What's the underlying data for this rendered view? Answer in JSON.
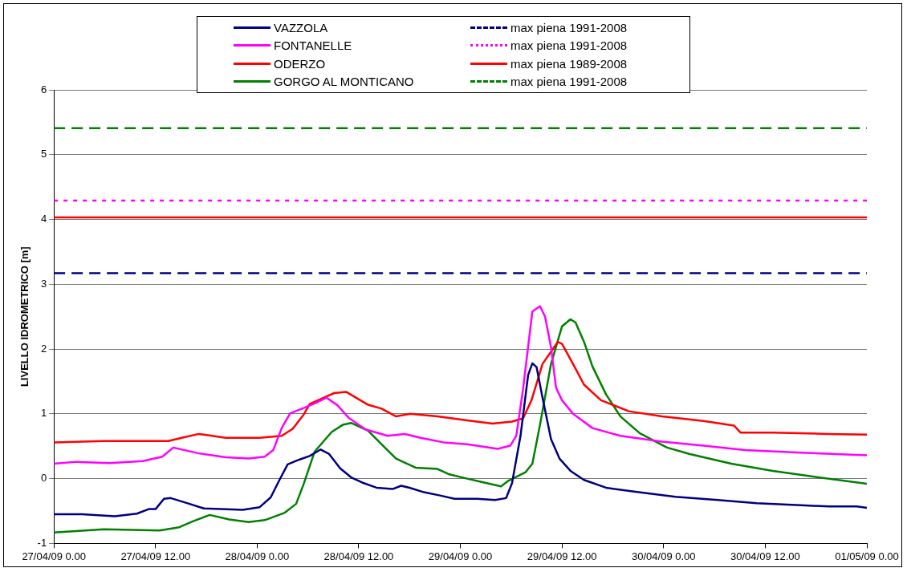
{
  "chart_data": {
    "type": "line",
    "ylabel": "LIVELLO IDROMETRICO [m]",
    "xlim": [
      "--04-27T00:00",
      "--05-01T00:00"
    ],
    "xticks": [
      {
        "value": "--04-27T00:00",
        "label": "27/04/09 0.00"
      },
      {
        "value": "--04-27T12:00",
        "label": "27/04/09 12.00"
      },
      {
        "value": "--04-28T00:00",
        "label": "28/04/09 0.00"
      },
      {
        "value": "--04-28T12:00",
        "label": "28/04/09 12.00"
      },
      {
        "value": "--04-29T00:00",
        "label": "29/04/09 0.00"
      },
      {
        "value": "--04-29T12:00",
        "label": "29/04/09 12.00"
      },
      {
        "value": "--04-30T00:00",
        "label": "30/04/09 0.00"
      },
      {
        "value": "--04-30T12:00",
        "label": "30/04/09 12.00"
      },
      {
        "value": "--05-01T00:00",
        "label": "01/05/09 0.00"
      }
    ],
    "ylim": [
      -1,
      6
    ],
    "yticks": [
      -1,
      0,
      1,
      2,
      3,
      4,
      5,
      6
    ],
    "grid": "y",
    "legend": "top",
    "marker": "none",
    "series": [
      {
        "name": "VAZZOLA",
        "color": "#000080",
        "line_style": "solid",
        "x": [
          "--04-27T00:00",
          "--04-27T03:18",
          "--04-27T07:12",
          "--04-27T09:48",
          "--04-27T11:12",
          "--04-27T12:00",
          "--04-27T13:00",
          "--04-27T13:48",
          "--04-27T15:48",
          "--04-27T17:42",
          "--04-27T19:42",
          "--04-27T22:18",
          "--04-28T00:18",
          "--04-28T01:36",
          "--04-28T02:36",
          "--04-28T03:36",
          "--04-28T04:54",
          "--04-28T06:12",
          "--04-28T07:30",
          "--04-28T08:30",
          "--04-28T09:48",
          "--04-28T11:06",
          "--04-28T12:24",
          "--04-28T14:06",
          "--04-28T16:00",
          "--04-28T17:00",
          "--04-28T18:00",
          "--04-28T19:42",
          "--04-28T21:36",
          "--04-28T23:18",
          "--04-29T02:00",
          "--04-29T04:06",
          "--04-29T05:24",
          "--04-29T06:06",
          "--04-29T07:06",
          "--04-29T08:00",
          "--04-29T08:30",
          "--04-29T09:00",
          "--04-29T09:42",
          "--04-29T10:42",
          "--04-29T11:42",
          "--04-29T13:00",
          "--04-29T14:36",
          "--04-29T17:12",
          "--04-29T20:30",
          "--04-30T01:24",
          "--04-30T06:24",
          "--04-30T11:00",
          "--04-30T16:12",
          "--04-30T19:30",
          "--04-30T22:48",
          "--05-01T00:00"
        ],
        "values": [
          -0.55,
          -0.55,
          -0.58,
          -0.54,
          -0.47,
          -0.47,
          -0.31,
          -0.3,
          -0.38,
          -0.46,
          -0.47,
          -0.48,
          -0.44,
          -0.29,
          -0.03,
          0.22,
          0.29,
          0.35,
          0.45,
          0.38,
          0.16,
          0.02,
          -0.06,
          -0.14,
          -0.16,
          -0.11,
          -0.14,
          -0.21,
          -0.26,
          -0.31,
          -0.31,
          -0.33,
          -0.3,
          -0.07,
          0.66,
          1.6,
          1.78,
          1.72,
          1.25,
          0.61,
          0.31,
          0.12,
          -0.02,
          -0.14,
          -0.2,
          -0.28,
          -0.33,
          -0.38,
          -0.41,
          -0.43,
          -0.43,
          -0.45
        ]
      },
      {
        "name": "FONTANELLE",
        "color": "#ff00ff",
        "line_style": "solid",
        "x": [
          "--04-27T00:00",
          "--04-27T02:36",
          "--04-27T06:36",
          "--04-27T10:30",
          "--04-27T12:48",
          "--04-27T14:06",
          "--04-27T17:06",
          "--04-27T20:18",
          "--04-27T23:00",
          "--04-28T00:54",
          "--04-28T01:54",
          "--04-28T02:54",
          "--04-28T03:54",
          "--04-28T05:30",
          "--04-28T06:48",
          "--04-28T08:12",
          "--04-28T09:30",
          "--04-28T10:48",
          "--04-28T12:48",
          "--04-28T15:24",
          "--04-28T17:24",
          "--04-28T19:18",
          "--04-28T22:00",
          "--04-29T00:48",
          "--04-29T04:24",
          "--04-29T05:54",
          "--04-29T06:36",
          "--04-29T07:24",
          "--04-29T08:30",
          "--04-29T09:24",
          "--04-29T10:00",
          "--04-29T10:42",
          "--04-29T11:18",
          "--04-29T12:00",
          "--04-29T13:18",
          "--04-29T15:36",
          "--04-29T18:54",
          "--04-29T23:48",
          "--04-30T04:42",
          "--04-30T09:36",
          "--04-30T16:12",
          "--05-01T00:00"
        ],
        "values": [
          0.23,
          0.26,
          0.24,
          0.27,
          0.34,
          0.48,
          0.39,
          0.33,
          0.31,
          0.34,
          0.44,
          0.78,
          1.01,
          1.09,
          1.16,
          1.25,
          1.13,
          0.94,
          0.76,
          0.66,
          0.69,
          0.63,
          0.56,
          0.53,
          0.46,
          0.51,
          0.66,
          1.38,
          2.58,
          2.66,
          2.5,
          2.03,
          1.4,
          1.21,
          1.0,
          0.78,
          0.66,
          0.57,
          0.51,
          0.44,
          0.4,
          0.36
        ]
      },
      {
        "name": "ODERZO",
        "color": "#ff0000",
        "line_style": "solid",
        "x": [
          "--04-27T00:00",
          "--04-27T05:54",
          "--04-27T13:30",
          "--04-27T15:06",
          "--04-27T17:06",
          "--04-27T20:18",
          "--04-28T00:18",
          "--04-28T02:54",
          "--04-28T04:12",
          "--04-28T05:30",
          "--04-28T06:12",
          "--04-28T08:12",
          "--04-28T09:06",
          "--04-28T10:30",
          "--04-28T13:06",
          "--04-28T14:42",
          "--04-28T16:24",
          "--04-28T18:00",
          "--04-28T21:18",
          "--04-29T00:48",
          "--04-29T03:48",
          "--04-29T06:06",
          "--04-29T07:24",
          "--04-29T08:24",
          "--04-29T09:42",
          "--04-29T11:30",
          "--04-29T12:00",
          "--04-29T13:18",
          "--04-29T14:36",
          "--04-29T16:36",
          "--04-29T19:54",
          "--04-29T23:48",
          "--04-30T04:42",
          "--04-30T08:18",
          "--04-30T09:06",
          "--04-30T12:54",
          "--04-30T19:30",
          "--05-01T00:00"
        ],
        "values": [
          0.56,
          0.58,
          0.58,
          0.63,
          0.69,
          0.63,
          0.63,
          0.66,
          0.77,
          0.99,
          1.15,
          1.27,
          1.32,
          1.34,
          1.14,
          1.08,
          0.96,
          1.0,
          0.96,
          0.9,
          0.85,
          0.88,
          0.93,
          1.21,
          1.77,
          2.11,
          2.08,
          1.77,
          1.45,
          1.21,
          1.04,
          0.96,
          0.89,
          0.82,
          0.71,
          0.71,
          0.69,
          0.68
        ]
      },
      {
        "name": "GORGO AL MONTICANO",
        "color": "#008000",
        "line_style": "solid",
        "x": [
          "--04-27T00:00",
          "--04-27T02:36",
          "--04-27T05:54",
          "--04-27T09:12",
          "--04-27T12:30",
          "--04-27T14:48",
          "--04-27T16:24",
          "--04-27T18:24",
          "--04-27T20:42",
          "--04-27T23:00",
          "--04-28T00:54",
          "--04-28T03:12",
          "--04-28T04:36",
          "--04-28T05:30",
          "--04-28T06:48",
          "--04-28T08:48",
          "--04-28T10:06",
          "--04-28T11:06",
          "--04-28T13:06",
          "--04-28T14:42",
          "--04-28T16:24",
          "--04-28T18:42",
          "--04-28T21:18",
          "--04-28T22:36",
          "--04-29T00:48",
          "--04-29T02:30",
          "--04-29T04:48",
          "--04-29T05:42",
          "--04-29T07:42",
          "--04-29T08:30",
          "--04-29T09:24",
          "--04-29T10:42",
          "--04-29T12:00",
          "--04-29T13:00",
          "--04-29T13:36",
          "--04-29T14:36",
          "--04-29T15:36",
          "--04-29T17:12",
          "--04-29T18:54",
          "--04-29T21:12",
          "--04-30T00:24",
          "--04-30T03:06",
          "--04-30T08:00",
          "--04-30T12:54",
          "--04-30T17:48",
          "--05-01T00:00"
        ],
        "values": [
          -0.83,
          -0.81,
          -0.78,
          -0.79,
          -0.8,
          -0.75,
          -0.66,
          -0.56,
          -0.63,
          -0.67,
          -0.64,
          -0.53,
          -0.39,
          -0.08,
          0.42,
          0.72,
          0.83,
          0.86,
          0.74,
          0.53,
          0.31,
          0.17,
          0.15,
          0.07,
          0.0,
          -0.05,
          -0.12,
          -0.03,
          0.1,
          0.23,
          0.83,
          1.77,
          2.35,
          2.46,
          2.41,
          2.11,
          1.73,
          1.3,
          0.96,
          0.7,
          0.48,
          0.38,
          0.23,
          0.12,
          0.03,
          -0.08
        ]
      },
      {
        "name": "max piena 1991-2008",
        "color": "#000080",
        "line_style": "dashed",
        "x": [
          "--04-27T00:00",
          "--05-01T00:00"
        ],
        "values": [
          3.17,
          3.17
        ]
      },
      {
        "name": "max piena 1991-2008",
        "color": "#ff00ff",
        "line_style": "dotted",
        "x": [
          "--04-27T00:00",
          "--05-01T00:00"
        ],
        "values": [
          4.29,
          4.29
        ]
      },
      {
        "name": "max piena 1989-2008",
        "color": "#ff0000",
        "line_style": "solid",
        "x": [
          "--04-27T00:00",
          "--05-01T00:00"
        ],
        "values": [
          4.03,
          4.03
        ]
      },
      {
        "name": "max piena 1991-2008",
        "color": "#008000",
        "line_style": "dashed",
        "x": [
          "--04-27T00:00",
          "--05-01T00:00"
        ],
        "values": [
          5.41,
          5.41
        ]
      }
    ]
  }
}
